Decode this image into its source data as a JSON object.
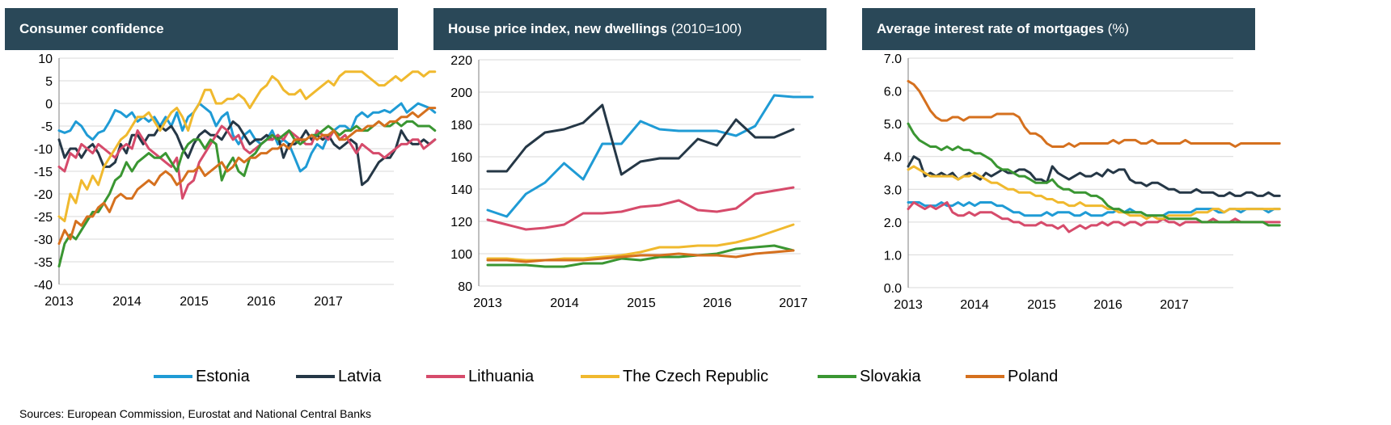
{
  "panels": [
    {
      "title_bold": "Consumer confidence",
      "title_unit": ""
    },
    {
      "title_bold": "House price index, new dwellings",
      "title_unit": "(2010=100)"
    },
    {
      "title_bold": "Average interest rate of mortgages",
      "title_unit": "(%)"
    }
  ],
  "source": "Sources: European Commission, Eurostat and National Central Banks",
  "colors": {
    "Estonia": "#1f9bd5",
    "Latvia": "#253746",
    "Lithuania": "#d64b6b",
    "The Czech Republic": "#f0b92e",
    "Slovakia": "#3a9632",
    "Poland": "#d5701e"
  },
  "legend": [
    "Estonia",
    "Latvia",
    "Lithuania",
    "The Czech Republic",
    "Slovakia",
    "Poland"
  ],
  "chart_data": [
    {
      "type": "line",
      "title": "Consumer confidence",
      "x_ticks": [
        "2013",
        "2014",
        "2015",
        "2016",
        "2017"
      ],
      "xlim": [
        2013,
        2018
      ],
      "ylim": [
        -40,
        10
      ],
      "y_ticks": [
        10,
        5,
        0,
        -5,
        -10,
        -15,
        -20,
        -25,
        -30,
        -35,
        -40
      ],
      "series": [
        {
          "name": "Estonia",
          "x_start": 2013,
          "step_months": 1,
          "values": [
            -6,
            -6.5,
            -6,
            -4,
            -5,
            -7,
            -8,
            -6.5,
            -6,
            -4,
            -1.5,
            -2,
            -3,
            -2,
            -4,
            -3,
            -4,
            -3,
            -5,
            -3,
            -5,
            -2,
            -6,
            -3,
            -2,
            0,
            -1,
            -2,
            -5,
            -3,
            -2,
            -7,
            -9,
            -7,
            -6,
            -8,
            -9,
            -8,
            -6,
            -9,
            -8,
            -9,
            -12,
            -15,
            -14,
            -11,
            -9,
            -10,
            -7,
            -6,
            -5,
            -5,
            -6,
            -3,
            -2,
            -3,
            -2,
            -2,
            -1.5,
            -2,
            -1,
            0,
            -2,
            -1,
            0,
            -0.5,
            -1,
            -2
          ]
        },
        {
          "name": "Latvia",
          "x_start": 2013,
          "step_months": 1,
          "values": [
            -8,
            -12,
            -10,
            -10,
            -12,
            -10,
            -9,
            -11,
            -14,
            -14,
            -13,
            -9,
            -11,
            -7,
            -7,
            -9,
            -7,
            -7,
            -5,
            -6,
            -5,
            -7,
            -10,
            -12,
            -9,
            -7,
            -6,
            -7,
            -7,
            -8,
            -6,
            -4,
            -5,
            -7,
            -9,
            -8,
            -8,
            -7,
            -8,
            -7,
            -12,
            -9,
            -9,
            -8,
            -6,
            -8,
            -7,
            -8,
            -7,
            -9,
            -10,
            -9,
            -8,
            -9,
            -18,
            -17,
            -15,
            -13,
            -12,
            -12,
            -10,
            -6,
            -8,
            -9,
            -9,
            -8,
            -9,
            -8
          ]
        },
        {
          "name": "Lithuania",
          "x_start": 2013,
          "step_months": 1,
          "values": [
            -14,
            -15,
            -11,
            -12,
            -9,
            -10,
            -11,
            -9,
            -10,
            -11,
            -12,
            -10,
            -9,
            -10,
            -6,
            -8,
            -10,
            -11,
            -12,
            -13,
            -14,
            -12,
            -21,
            -18,
            -17,
            -13,
            -11,
            -9,
            -7,
            -5,
            -6,
            -8,
            -7,
            -10,
            -11,
            -10,
            -9,
            -8,
            -8,
            -7,
            -8,
            -6,
            -7,
            -8,
            -9,
            -9,
            -6,
            -7,
            -8,
            -6,
            -8,
            -7,
            -9,
            -11,
            -9,
            -10,
            -11,
            -11,
            -12,
            -11,
            -10,
            -9,
            -9,
            -8,
            -8,
            -10,
            -9,
            -8
          ]
        },
        {
          "name": "The Czech Republic",
          "x_start": 2013,
          "step_months": 1,
          "values": [
            -25,
            -26,
            -20,
            -22,
            -17,
            -19,
            -16,
            -18,
            -14,
            -12,
            -10,
            -8,
            -7,
            -5,
            -3,
            -3,
            -2,
            -4,
            -6,
            -4,
            -2,
            -1,
            -3,
            -6,
            -2,
            0,
            3,
            3,
            0,
            0,
            1,
            1,
            2,
            1,
            -1,
            1,
            3,
            4,
            6,
            5,
            3,
            2,
            2,
            3,
            1,
            2,
            3,
            4,
            5,
            4,
            6,
            7,
            7,
            7,
            7,
            6,
            5,
            4,
            4,
            5,
            6,
            5,
            6,
            7,
            7,
            6,
            7,
            7
          ]
        },
        {
          "name": "Slovakia",
          "x_start": 2013,
          "step_months": 1,
          "values": [
            -36,
            -31,
            -29,
            -30,
            -28,
            -26,
            -24,
            -24,
            -22,
            -20,
            -17,
            -16,
            -13,
            -15,
            -13,
            -12,
            -11,
            -12,
            -12,
            -11,
            -13,
            -15,
            -11,
            -9,
            -8,
            -8,
            -10,
            -8,
            -9,
            -17,
            -14,
            -12,
            -15,
            -16,
            -12,
            -11,
            -9,
            -8,
            -7,
            -8,
            -7,
            -6,
            -8,
            -9,
            -8,
            -7,
            -7,
            -6,
            -5,
            -6,
            -7,
            -6,
            -6,
            -5,
            -6,
            -6,
            -5,
            -4,
            -5,
            -5,
            -4,
            -5,
            -4,
            -4,
            -5,
            -5,
            -5,
            -6
          ]
        },
        {
          "name": "Poland",
          "x_start": 2013,
          "step_months": 1,
          "values": [
            -31,
            -28,
            -30,
            -26,
            -27,
            -25,
            -25,
            -23,
            -22,
            -24,
            -21,
            -20,
            -21,
            -21,
            -19,
            -18,
            -17,
            -18,
            -16,
            -15,
            -16,
            -18,
            -17,
            -15,
            -15,
            -14,
            -16,
            -15,
            -14,
            -13,
            -15,
            -14,
            -12,
            -13,
            -12,
            -12,
            -11,
            -11,
            -10,
            -10,
            -9,
            -10,
            -8,
            -8,
            -8,
            -7,
            -8,
            -7,
            -7,
            -6,
            -8,
            -8,
            -7,
            -6,
            -6,
            -5,
            -5,
            -4,
            -5,
            -4,
            -4,
            -3,
            -3,
            -2,
            -3,
            -2,
            -1,
            -1
          ]
        }
      ]
    },
    {
      "type": "line",
      "title": "House price index, new dwellings (2010=100)",
      "x_ticks": [
        "2013",
        "2014",
        "2015",
        "2016",
        "2017"
      ],
      "xlim": [
        2013,
        2017.25
      ],
      "ylim": [
        80,
        220
      ],
      "y_ticks": [
        220,
        200,
        180,
        160,
        140,
        120,
        100,
        80
      ],
      "series": [
        {
          "name": "Estonia",
          "x_start": 2013,
          "step_quarters": 1,
          "values": [
            127,
            123,
            137,
            144,
            156,
            146,
            168,
            168,
            182,
            177,
            176,
            176,
            176,
            173,
            179,
            198,
            197,
            197
          ]
        },
        {
          "name": "Latvia",
          "x_start": 2013,
          "step_quarters": 1,
          "values": [
            151,
            151,
            166,
            175,
            177,
            181,
            192,
            149,
            157,
            159,
            159,
            171,
            167,
            183,
            172,
            172,
            177
          ]
        },
        {
          "name": "Lithuania",
          "x_start": 2013,
          "step_quarters": 1,
          "values": [
            121,
            118,
            115,
            116,
            118,
            125,
            125,
            126,
            129,
            130,
            133,
            127,
            126,
            128,
            137,
            139,
            141
          ]
        },
        {
          "name": "The Czech Republic",
          "x_start": 2013,
          "step_quarters": 1,
          "values": [
            97,
            97,
            96,
            96,
            97,
            97,
            98,
            99,
            101,
            104,
            104,
            105,
            105,
            107,
            110,
            114,
            118
          ]
        },
        {
          "name": "Slovakia",
          "x_start": 2013,
          "step_quarters": 1,
          "values": [
            93,
            93,
            93,
            92,
            92,
            94,
            94,
            97,
            96,
            98,
            98,
            99,
            100,
            103,
            104,
            105,
            102
          ]
        },
        {
          "name": "Poland",
          "x_start": 2013,
          "step_quarters": 1,
          "values": [
            96,
            96,
            95,
            96,
            96,
            96,
            97,
            98,
            99,
            99,
            100,
            99,
            99,
            98,
            100,
            101,
            102
          ]
        }
      ]
    },
    {
      "type": "line",
      "title": "Average interest rate of mortgages (%)",
      "x_ticks": [
        "2013",
        "2014",
        "2015",
        "2016",
        "2017"
      ],
      "xlim": [
        2013,
        2018
      ],
      "ylim": [
        0,
        7
      ],
      "y_ticks": [
        "7.0",
        "6.0",
        "5.0",
        "4.0",
        "3.0",
        "2.0",
        "1.0",
        "0.0"
      ],
      "series": [
        {
          "name": "Estonia",
          "x_start": 2013,
          "step_months": 1,
          "values": [
            2.6,
            2.6,
            2.6,
            2.5,
            2.5,
            2.5,
            2.6,
            2.5,
            2.5,
            2.6,
            2.5,
            2.6,
            2.5,
            2.6,
            2.6,
            2.6,
            2.5,
            2.5,
            2.4,
            2.3,
            2.3,
            2.2,
            2.2,
            2.2,
            2.2,
            2.3,
            2.2,
            2.3,
            2.3,
            2.3,
            2.2,
            2.2,
            2.3,
            2.2,
            2.2,
            2.2,
            2.3,
            2.3,
            2.4,
            2.3,
            2.4,
            2.3,
            2.3,
            2.2,
            2.2,
            2.2,
            2.2,
            2.3,
            2.3,
            2.3,
            2.3,
            2.3,
            2.4,
            2.4,
            2.4,
            2.4,
            2.3,
            2.3,
            2.4,
            2.4,
            2.3,
            2.4,
            2.4,
            2.4,
            2.4,
            2.3,
            2.4,
            2.4
          ]
        },
        {
          "name": "Latvia",
          "x_start": 2013,
          "step_months": 1,
          "values": [
            3.7,
            4.0,
            3.9,
            3.4,
            3.5,
            3.4,
            3.5,
            3.4,
            3.5,
            3.3,
            3.4,
            3.5,
            3.4,
            3.3,
            3.5,
            3.4,
            3.5,
            3.6,
            3.5,
            3.5,
            3.6,
            3.6,
            3.5,
            3.3,
            3.3,
            3.2,
            3.7,
            3.5,
            3.4,
            3.3,
            3.4,
            3.5,
            3.4,
            3.4,
            3.5,
            3.4,
            3.6,
            3.5,
            3.6,
            3.6,
            3.3,
            3.2,
            3.2,
            3.1,
            3.2,
            3.2,
            3.1,
            3.0,
            3.0,
            2.9,
            2.9,
            2.9,
            3.0,
            2.9,
            2.9,
            2.9,
            2.8,
            2.8,
            2.9,
            2.8,
            2.8,
            2.9,
            2.9,
            2.8,
            2.8,
            2.9,
            2.8,
            2.8
          ]
        },
        {
          "name": "Lithuania",
          "x_start": 2013,
          "step_months": 1,
          "values": [
            2.4,
            2.6,
            2.5,
            2.4,
            2.5,
            2.4,
            2.5,
            2.6,
            2.3,
            2.2,
            2.2,
            2.3,
            2.2,
            2.3,
            2.3,
            2.3,
            2.2,
            2.1,
            2.1,
            2.0,
            2.0,
            1.9,
            1.9,
            1.9,
            2.0,
            1.9,
            1.9,
            1.8,
            1.9,
            1.7,
            1.8,
            1.9,
            1.8,
            1.9,
            1.9,
            2.0,
            1.9,
            2.0,
            2.0,
            1.9,
            2.0,
            2.0,
            1.9,
            2.0,
            2.0,
            2.0,
            2.1,
            2.0,
            2.0,
            1.9,
            2.0,
            2.0,
            2.0,
            2.0,
            2.0,
            2.1,
            2.0,
            2.0,
            2.0,
            2.1,
            2.0,
            2.0,
            2.0,
            2.0,
            2.0,
            2.0,
            2.0,
            2.0
          ]
        },
        {
          "name": "The Czech Republic",
          "x_start": 2013,
          "step_months": 1,
          "values": [
            3.6,
            3.7,
            3.6,
            3.5,
            3.4,
            3.4,
            3.4,
            3.4,
            3.4,
            3.3,
            3.4,
            3.4,
            3.5,
            3.4,
            3.3,
            3.2,
            3.2,
            3.1,
            3.0,
            3.0,
            2.9,
            2.9,
            2.9,
            2.8,
            2.8,
            2.7,
            2.7,
            2.6,
            2.6,
            2.5,
            2.5,
            2.6,
            2.5,
            2.5,
            2.5,
            2.5,
            2.4,
            2.4,
            2.3,
            2.3,
            2.2,
            2.2,
            2.2,
            2.1,
            2.2,
            2.1,
            2.1,
            2.2,
            2.2,
            2.2,
            2.2,
            2.2,
            2.3,
            2.3,
            2.3,
            2.4,
            2.4,
            2.3,
            2.4,
            2.4,
            2.4,
            2.4,
            2.4,
            2.4,
            2.4,
            2.4,
            2.4,
            2.4
          ]
        },
        {
          "name": "Slovakia",
          "x_start": 2013,
          "step_months": 1,
          "values": [
            5.0,
            4.7,
            4.5,
            4.4,
            4.3,
            4.3,
            4.2,
            4.3,
            4.2,
            4.3,
            4.2,
            4.2,
            4.1,
            4.1,
            4.0,
            3.9,
            3.7,
            3.6,
            3.6,
            3.5,
            3.4,
            3.4,
            3.3,
            3.2,
            3.2,
            3.2,
            3.3,
            3.1,
            3.0,
            3.0,
            2.9,
            2.9,
            2.9,
            2.8,
            2.8,
            2.7,
            2.5,
            2.4,
            2.4,
            2.3,
            2.3,
            2.3,
            2.3,
            2.2,
            2.2,
            2.2,
            2.2,
            2.1,
            2.1,
            2.1,
            2.1,
            2.1,
            2.1,
            2.0,
            2.0,
            2.0,
            2.0,
            2.0,
            2.0,
            2.0,
            2.0,
            2.0,
            2.0,
            2.0,
            2.0,
            1.9,
            1.9,
            1.9
          ]
        },
        {
          "name": "Poland",
          "x_start": 2013,
          "step_months": 1,
          "values": [
            6.3,
            6.2,
            6.0,
            5.7,
            5.4,
            5.2,
            5.1,
            5.1,
            5.2,
            5.2,
            5.1,
            5.2,
            5.2,
            5.2,
            5.2,
            5.2,
            5.3,
            5.3,
            5.3,
            5.3,
            5.2,
            4.9,
            4.7,
            4.7,
            4.6,
            4.4,
            4.3,
            4.3,
            4.3,
            4.4,
            4.3,
            4.4,
            4.4,
            4.4,
            4.4,
            4.4,
            4.4,
            4.5,
            4.4,
            4.5,
            4.5,
            4.5,
            4.4,
            4.4,
            4.5,
            4.4,
            4.4,
            4.4,
            4.4,
            4.4,
            4.5,
            4.4,
            4.4,
            4.4,
            4.4,
            4.4,
            4.4,
            4.4,
            4.4,
            4.3,
            4.4,
            4.4,
            4.4,
            4.4,
            4.4,
            4.4,
            4.4,
            4.4
          ]
        }
      ]
    }
  ]
}
